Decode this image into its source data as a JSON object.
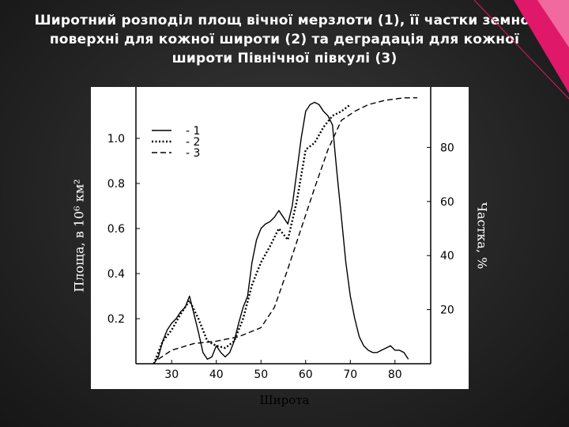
{
  "slide": {
    "title_lines": [
      "Широтний розподіл площ вічної мерзлоти (1), її частки земної",
      "поверхні для кожної широти (2) та деградація для кожної",
      "широти Північної півкулі (3)"
    ]
  },
  "colors": {
    "background": "#222222",
    "accent_pink": "#e0186a",
    "accent_pink_light": "#f06aa0",
    "chart_line": "#000000"
  },
  "chart_data": {
    "type": "line",
    "xlabel": "Широта",
    "ylabel_left": "Площа, в 10⁶ км²",
    "ylabel_right": "Частка, %",
    "xlim": [
      22,
      88
    ],
    "ylim": [
      0,
      1.2
    ],
    "y2lim": [
      0,
      100
    ],
    "x_ticks": [
      "30",
      "40",
      "50",
      "60",
      "70",
      "80"
    ],
    "y_ticks": [
      "0.2",
      "0.4",
      "0.6",
      "0.8",
      "1.0"
    ],
    "y2_ticks": [
      "20",
      "40",
      "60",
      "80"
    ],
    "grid": false,
    "legend": {
      "position": "top-left",
      "entries": [
        "- 1",
        "- 2",
        "- 3"
      ]
    },
    "series": [
      {
        "name": "1",
        "style": "solid",
        "x": [
          26,
          27,
          28,
          29,
          30,
          31,
          32,
          33,
          34,
          35,
          36,
          37,
          38,
          39,
          40,
          41,
          42,
          43,
          44,
          45,
          46,
          47,
          48,
          49,
          50,
          51,
          52,
          53,
          54,
          55,
          56,
          57,
          58,
          59,
          60,
          61,
          62,
          63,
          64,
          65,
          66,
          67,
          68,
          69,
          70,
          71,
          72,
          73,
          74,
          75,
          76,
          77,
          78,
          79,
          80,
          81,
          82,
          83
        ],
        "y": [
          0.0,
          0.03,
          0.1,
          0.15,
          0.18,
          0.2,
          0.23,
          0.25,
          0.3,
          0.22,
          0.14,
          0.05,
          0.02,
          0.03,
          0.08,
          0.05,
          0.03,
          0.05,
          0.1,
          0.18,
          0.25,
          0.3,
          0.45,
          0.55,
          0.6,
          0.62,
          0.63,
          0.65,
          0.68,
          0.65,
          0.62,
          0.7,
          0.85,
          1.0,
          1.12,
          1.15,
          1.16,
          1.15,
          1.12,
          1.1,
          1.06,
          0.85,
          0.65,
          0.45,
          0.3,
          0.2,
          0.12,
          0.08,
          0.06,
          0.05,
          0.05,
          0.06,
          0.07,
          0.08,
          0.06,
          0.06,
          0.05,
          0.02
        ]
      },
      {
        "name": "2",
        "style": "dotted",
        "x": [
          26,
          28,
          30,
          32,
          34,
          36,
          38,
          40,
          42,
          44,
          46,
          48,
          50,
          52,
          54,
          56,
          58,
          60,
          62,
          64,
          66,
          68,
          70
        ],
        "y": [
          0.0,
          0.1,
          0.15,
          0.22,
          0.28,
          0.2,
          0.1,
          0.08,
          0.07,
          0.1,
          0.2,
          0.35,
          0.45,
          0.52,
          0.6,
          0.55,
          0.72,
          0.95,
          0.98,
          1.05,
          1.1,
          1.12,
          1.15
        ]
      },
      {
        "name": "3",
        "style": "dashed",
        "x": [
          27,
          30,
          35,
          40,
          45,
          50,
          53,
          56,
          59,
          62,
          65,
          68,
          71,
          74,
          78,
          82,
          85
        ],
        "y": [
          0.02,
          0.06,
          0.09,
          0.1,
          0.12,
          0.16,
          0.25,
          0.42,
          0.6,
          0.78,
          0.95,
          1.08,
          1.12,
          1.15,
          1.17,
          1.18,
          1.18
        ]
      }
    ]
  }
}
